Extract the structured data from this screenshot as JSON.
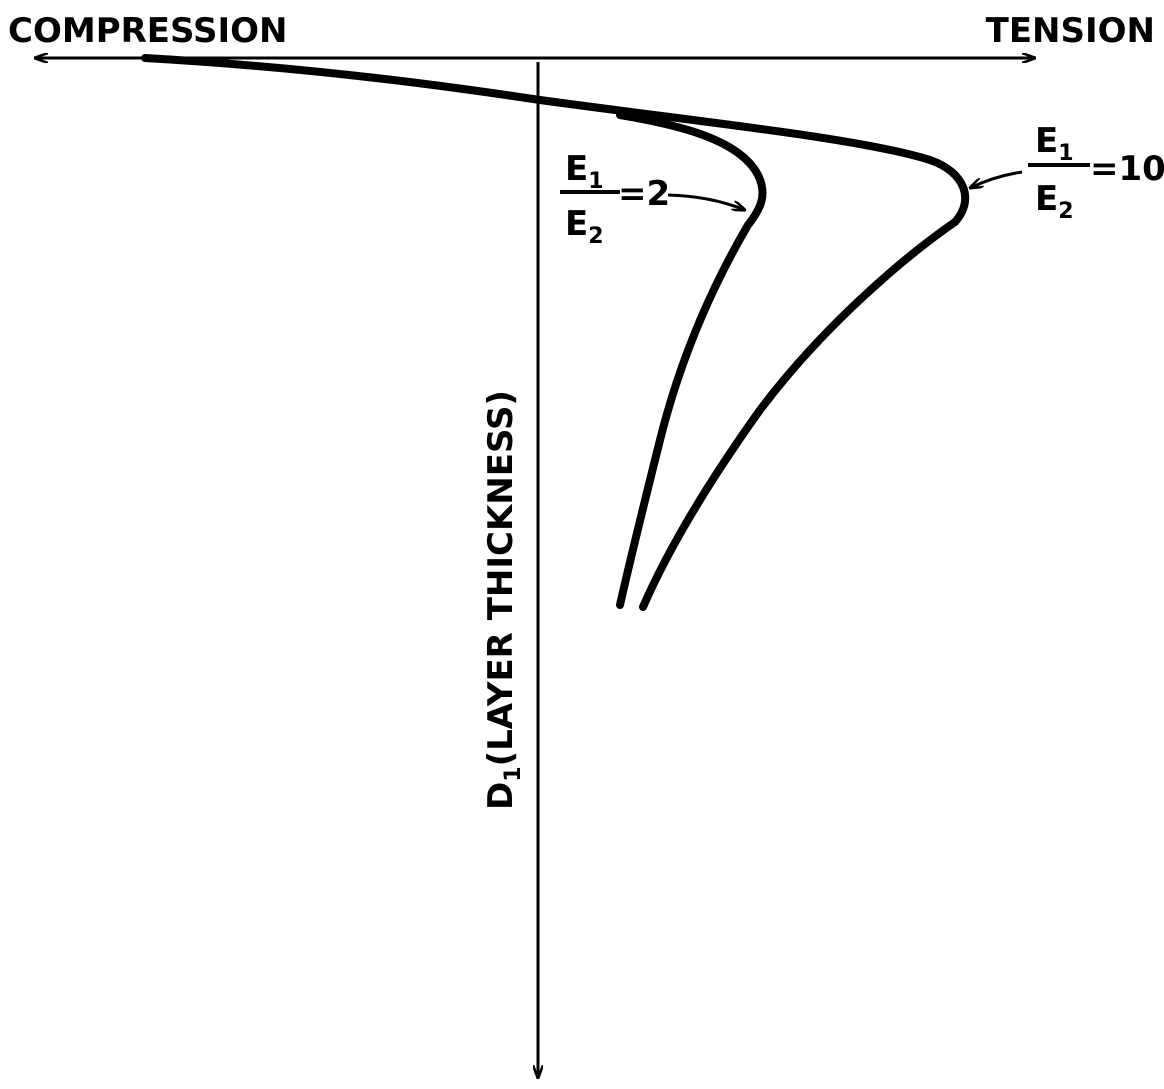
{
  "axes": {
    "left_label": "COMPRESSION",
    "right_label": "TENSION",
    "vertical_label": {
      "main": "D",
      "subscript": "1",
      "rest": "(LAYER THICKNESS)"
    }
  },
  "curves": [
    {
      "numerator": {
        "main": "E",
        "subscript": "1"
      },
      "denominator": {
        "main": "E",
        "subscript": "2"
      },
      "ratio": "=2"
    },
    {
      "numerator": {
        "main": "E",
        "subscript": "1"
      },
      "denominator": {
        "main": "E",
        "subscript": "2"
      },
      "ratio": "=10"
    }
  ]
}
